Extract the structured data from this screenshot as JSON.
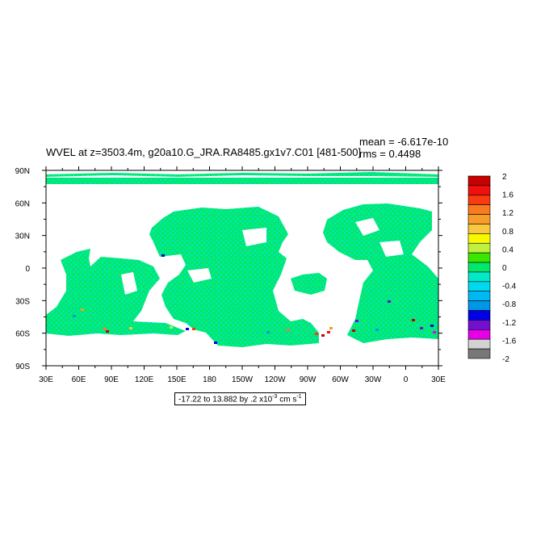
{
  "title": "WVEL at z=3503.4m, g20a10.G_JRA.RA8485.gx1v7.C01 [481-500]",
  "stats": {
    "mean": "mean = -6.617e-10",
    "rms": "rms = 0.4498"
  },
  "range_box": {
    "prefix": "-17.22 to 13.882 by .2 x10",
    "exp": "-3",
    "unit": " cm s",
    "unit_exp": "-1"
  },
  "colors": {
    "land": "#ffffff",
    "legend": [
      "#c80000",
      "#f01010",
      "#f63c10",
      "#f87b1e",
      "#f89e28",
      "#f8c840",
      "#f8f800",
      "#c0f040",
      "#3ae700",
      "#00e86c",
      "#00e9c9",
      "#00d8ee",
      "#00b9f4",
      "#0096e6",
      "#0000e6",
      "#7010d2",
      "#e600e6",
      "#d2d2d2",
      "#787878"
    ]
  },
  "chart_data": {
    "type": "heatmap",
    "map": "global ocean field (equirectangular)",
    "lon_ticks": [
      "30E",
      "60E",
      "90E",
      "120E",
      "150E",
      "180",
      "150W",
      "120W",
      "90W",
      "60W",
      "30W",
      "0",
      "30E"
    ],
    "lat_ticks": [
      "90N",
      "60N",
      "30N",
      "0",
      "30S",
      "60S",
      "90S"
    ],
    "xlim": [
      30,
      390
    ],
    "ylim": [
      -90,
      90
    ],
    "colorbar": {
      "levels": [
        2,
        1.8,
        1.6,
        1.4,
        1.2,
        1,
        0.8,
        0.6,
        0.4,
        0.2,
        0,
        -0.2,
        -0.4,
        -0.6,
        -0.8,
        -1,
        -1.2,
        -1.4,
        -1.6,
        -1.8,
        -2
      ],
      "labels": [
        "2",
        "1.6",
        "1.2",
        "0.8",
        "0.4",
        "0",
        "-0.4",
        "-0.8",
        "-1.2",
        "-1.6",
        "-2"
      ]
    },
    "dominant_value_range": [
      -0.4,
      0.2
    ],
    "extremes_region": "Southern Ocean near 60S"
  }
}
